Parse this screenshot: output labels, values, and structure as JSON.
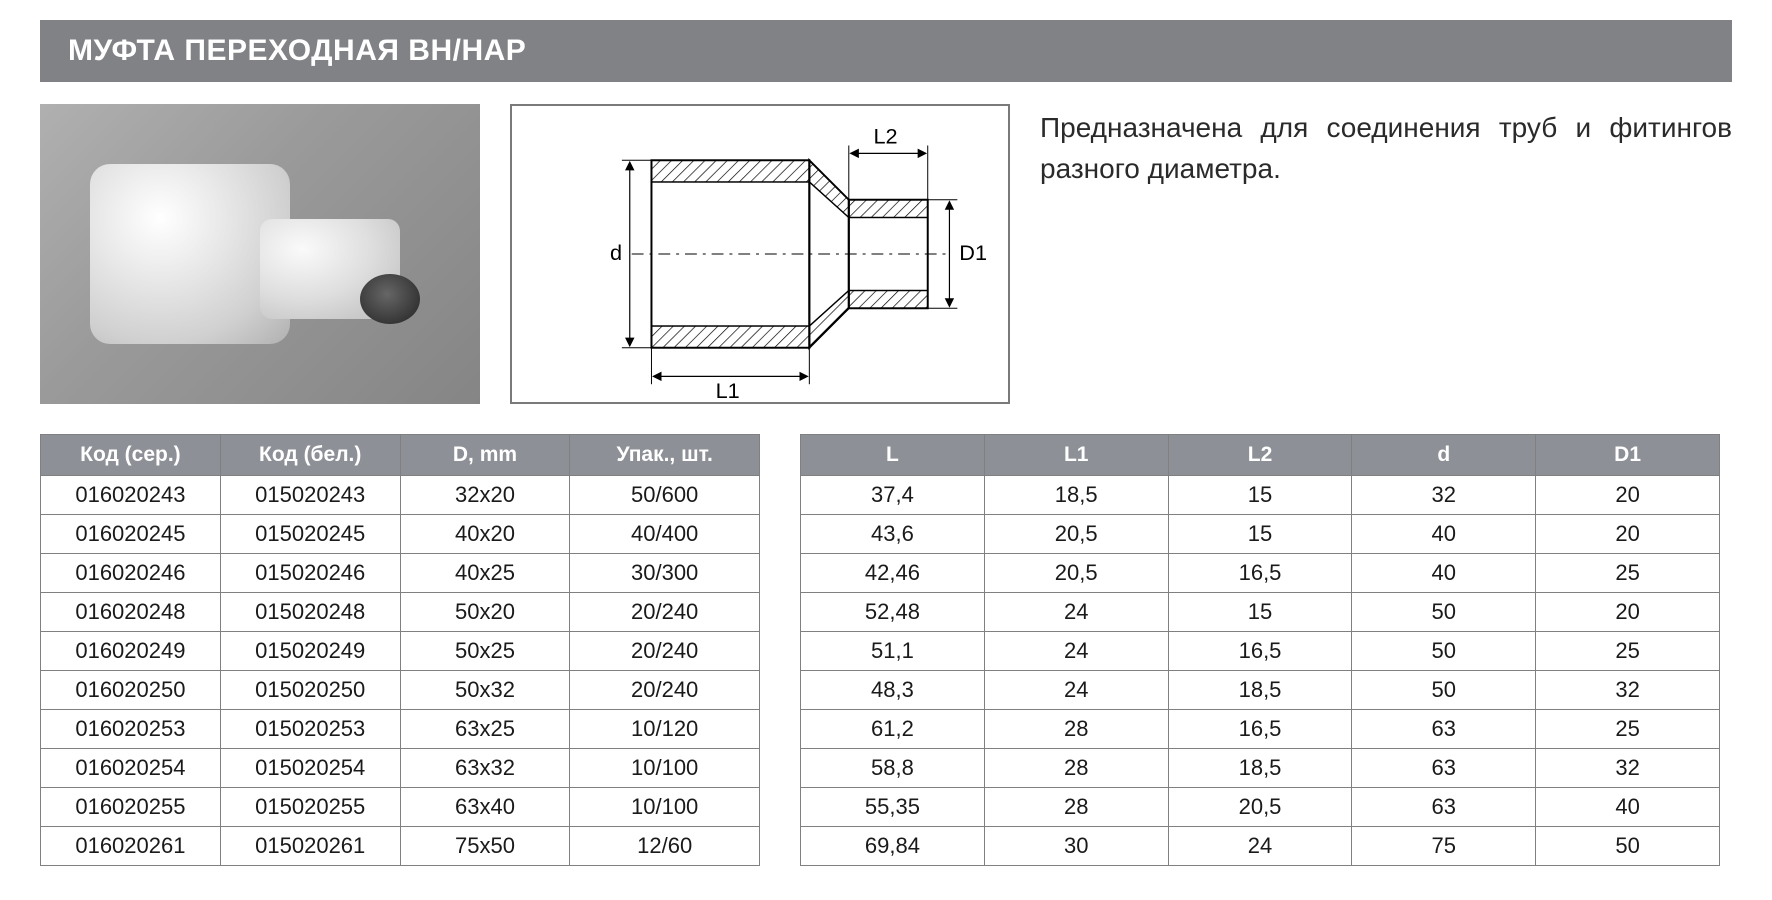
{
  "header": {
    "title": "МУФТА ПЕРЕХОДНАЯ ВН/НАР"
  },
  "description": "Предназначена для соединения труб и фитингов разного диа­метра.",
  "diagram": {
    "labels": {
      "d": "d",
      "D1": "D1",
      "L1": "L1",
      "L2": "L2"
    },
    "stroke": "#000000",
    "hatch": "#000000"
  },
  "colors": {
    "header_bg": "#808285",
    "header_fg": "#ffffff",
    "th_bg": "#8d9096",
    "th_fg": "#ffffff",
    "border": "#808080",
    "text": "#1a1a1a"
  },
  "table_left": {
    "columns": [
      "Код (сер.)",
      "Код (бел.)",
      "D, mm",
      "Упак., шт."
    ],
    "rows": [
      [
        "016020243",
        "015020243",
        "32x20",
        "50/600"
      ],
      [
        "016020245",
        "015020245",
        "40x20",
        "40/400"
      ],
      [
        "016020246",
        "015020246",
        "40x25",
        "30/300"
      ],
      [
        "016020248",
        "015020248",
        "50x20",
        "20/240"
      ],
      [
        "016020249",
        "015020249",
        "50x25",
        "20/240"
      ],
      [
        "016020250",
        "015020250",
        "50x32",
        "20/240"
      ],
      [
        "016020253",
        "015020253",
        "63x25",
        "10/120"
      ],
      [
        "016020254",
        "015020254",
        "63x32",
        "10/100"
      ],
      [
        "016020255",
        "015020255",
        "63x40",
        "10/100"
      ],
      [
        "016020261",
        "015020261",
        "75x50",
        "12/60"
      ]
    ]
  },
  "table_right": {
    "columns": [
      "L",
      "L1",
      "L2",
      "d",
      "D1"
    ],
    "rows": [
      [
        "37,4",
        "18,5",
        "15",
        "32",
        "20"
      ],
      [
        "43,6",
        "20,5",
        "15",
        "40",
        "20"
      ],
      [
        "42,46",
        "20,5",
        "16,5",
        "40",
        "25"
      ],
      [
        "52,48",
        "24",
        "15",
        "50",
        "20"
      ],
      [
        "51,1",
        "24",
        "16,5",
        "50",
        "25"
      ],
      [
        "48,3",
        "24",
        "18,5",
        "50",
        "32"
      ],
      [
        "61,2",
        "28",
        "16,5",
        "63",
        "25"
      ],
      [
        "58,8",
        "28",
        "18,5",
        "63",
        "32"
      ],
      [
        "55,35",
        "28",
        "20,5",
        "63",
        "40"
      ],
      [
        "69,84",
        "30",
        "24",
        "75",
        "50"
      ]
    ]
  }
}
